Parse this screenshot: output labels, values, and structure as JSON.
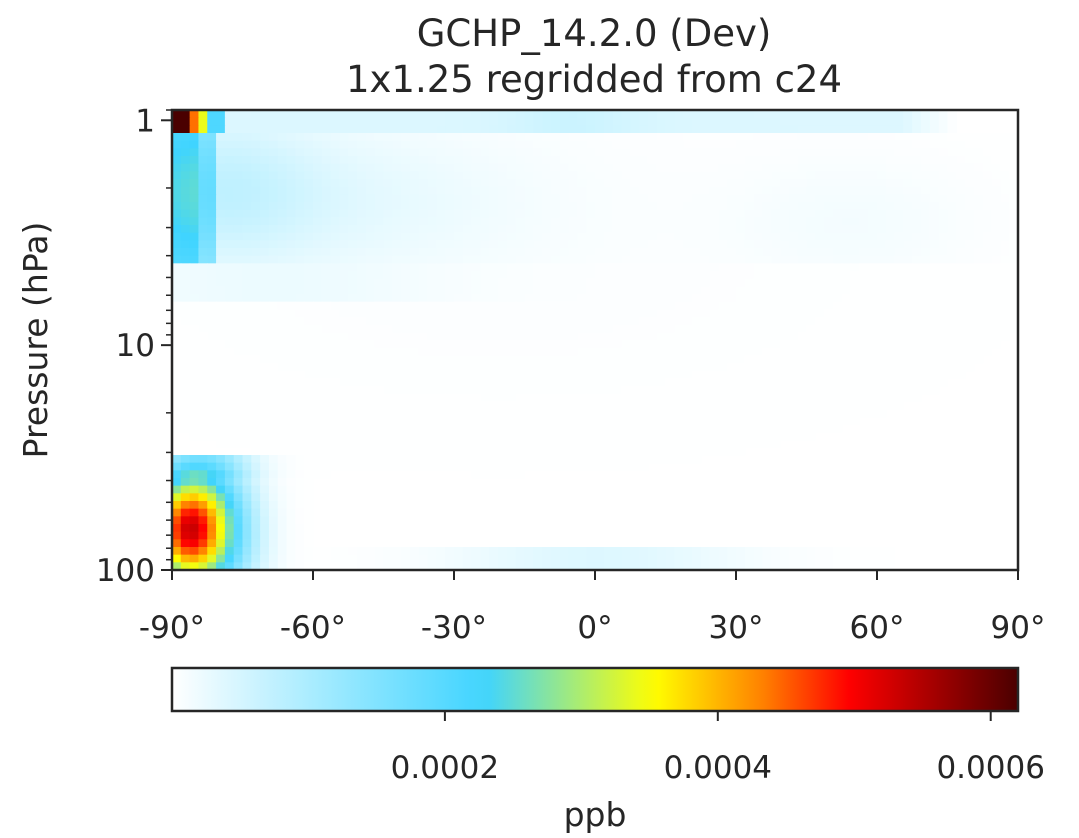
{
  "chart_data": {
    "type": "heatmap",
    "title": [
      "GCHP_14.2.0 (Dev)",
      "1x1.25 regridded from c24"
    ],
    "xlabel": "",
    "ylabel": "Pressure (hPa)",
    "x_axis": {
      "range": [
        -90,
        90
      ],
      "ticks": [
        -90,
        -60,
        -30,
        0,
        30,
        60,
        90
      ],
      "tick_labels": [
        "-90°",
        "-60°",
        "-30°",
        "0°",
        "30°",
        "60°",
        "90°"
      ]
    },
    "y_axis": {
      "scale": "log",
      "inverted": true,
      "range": [
        100,
        0.9
      ],
      "ticks": [
        1,
        10,
        100
      ],
      "tick_labels": [
        "1",
        "10",
        "100"
      ]
    },
    "colorbar": {
      "label": "ppb",
      "colormap": "WhGrYlRd",
      "range": [
        0,
        0.00062
      ],
      "ticks": [
        0.0002,
        0.0004,
        0.0006
      ],
      "tick_labels": [
        "0.0002",
        "0.0004",
        "0.0006"
      ],
      "colors": [
        "#ffffff",
        "#3fd4ff",
        "#ffff00",
        "#ff7f00",
        "#ff0000",
        "#4a0000"
      ]
    },
    "approx_features": [
      {
        "lat_range": [
          -90,
          -86
        ],
        "pressure_range": [
          0.9,
          1.1
        ],
        "value": 0.00062
      },
      {
        "lat_range": [
          -90,
          -79
        ],
        "pressure_range": [
          1.1,
          4.0
        ],
        "value": 0.00012
      },
      {
        "lat_range": [
          -90,
          -77
        ],
        "pressure_range": [
          35,
          100
        ],
        "value": 0.00044
      },
      {
        "lat_range": [
          -90,
          65
        ],
        "pressure_range": [
          0.9,
          1.1
        ],
        "value": 4e-05
      },
      {
        "lat_range": [
          -35,
          35
        ],
        "pressure_range": [
          85,
          100
        ],
        "value": 4e-05
      }
    ]
  }
}
